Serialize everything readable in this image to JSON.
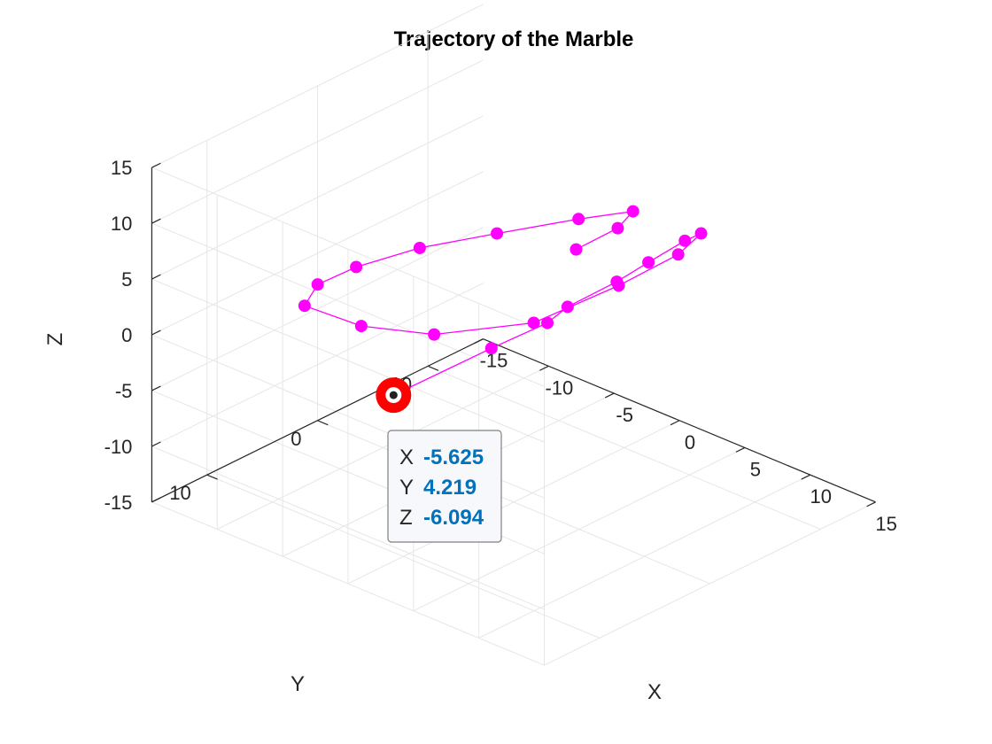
{
  "chart_data": {
    "type": "scatter",
    "subtype": "3d-line-with-markers",
    "title": "Trajectory of the Marble",
    "xlabel": "X",
    "ylabel": "Y",
    "zlabel": "Z",
    "xlim": [
      -15,
      15
    ],
    "ylim": [
      -15,
      15
    ],
    "zlim": [
      -15,
      15
    ],
    "x_ticks": [
      -15,
      -10,
      -5,
      0,
      5,
      10,
      15
    ],
    "y_ticks": [
      -10,
      0,
      10
    ],
    "z_ticks": [
      -15,
      -10,
      -5,
      0,
      5,
      10,
      15
    ],
    "grid": true,
    "view": "3d-perspective",
    "series": [
      {
        "marker": "filled-circle",
        "points": [
          {
            "x": -5.625,
            "y": 4.219,
            "z": -6.094
          },
          {
            "x": -1.2,
            "y": 0.6,
            "z": -1.5
          },
          {
            "x": 1.9,
            "y": -0.8,
            "z": 1.6
          },
          {
            "x": 2.6,
            "y": -1.8,
            "z": 2.9
          },
          {
            "x": 4.5,
            "y": -4.0,
            "z": 5.0
          },
          {
            "x": 5.4,
            "y": -5.8,
            "z": 6.3
          },
          {
            "x": 6.5,
            "y": -7.8,
            "z": 7.8
          },
          {
            "x": 7.4,
            "y": -8.2,
            "z": 8.7
          },
          {
            "x": 7.0,
            "y": -6.6,
            "z": 7.4
          },
          {
            "x": 4.9,
            "y": -3.7,
            "z": 5.0
          },
          {
            "x": 1.7,
            "y": 0.2,
            "z": 2.0
          },
          {
            "x": -2.2,
            "y": 4.6,
            "z": 1.2
          },
          {
            "x": -4.9,
            "y": 8.0,
            "z": 2.3
          },
          {
            "x": -6.7,
            "y": 11.0,
            "z": 4.7
          },
          {
            "x": -5.7,
            "y": 11.0,
            "z": 7.1
          },
          {
            "x": -3.6,
            "y": 10.0,
            "z": 9.2
          },
          {
            "x": -0.6,
            "y": 7.8,
            "z": 11.3
          },
          {
            "x": 2.6,
            "y": 4.6,
            "z": 12.6
          },
          {
            "x": 5.8,
            "y": 1.0,
            "z": 13.7
          },
          {
            "x": 7.6,
            "y": -1.8,
            "z": 13.9
          },
          {
            "x": 6.6,
            "y": -1.6,
            "z": 12.0
          },
          {
            "x": 4.6,
            "y": -0.2,
            "z": 9.8
          }
        ]
      }
    ],
    "highlighted_point": {
      "x": -5.625,
      "y": 4.219,
      "z": -6.094
    },
    "datatip": {
      "x_key": "X",
      "x_value": "-5.625",
      "y_key": "Y",
      "y_value": "4.219",
      "z_key": "Z",
      "z_value": "-6.094"
    }
  },
  "colors": {
    "line": "#ff00ff",
    "marker": "#ff00ff",
    "highlight": "#ff0000",
    "grid": "#e6e6e6",
    "axis": "#262626",
    "tip_value": "#0072bd",
    "tip_border": "#808080",
    "tip_background": "#f7f8fb"
  }
}
